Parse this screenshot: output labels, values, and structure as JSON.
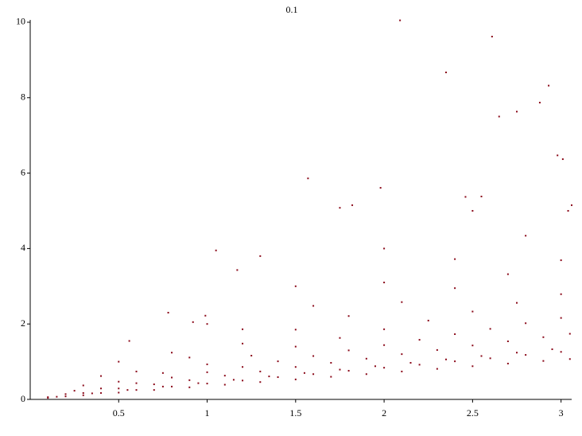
{
  "chart_data": {
    "type": "scatter",
    "title": "0.1",
    "color": "#8b0a1a",
    "xlim": [
      0,
      3.06
    ],
    "ylim": [
      0,
      10.05
    ],
    "xticks": [
      0.5,
      1,
      1.5,
      2,
      2.5,
      3
    ],
    "yticks": [
      0,
      2,
      4,
      6,
      8,
      10
    ],
    "x": [
      0.1,
      0.3,
      0.5,
      0.7,
      0.9,
      1.1,
      1.3,
      1.5,
      1.7,
      1.9,
      2.1,
      2.3,
      2.5,
      2.7,
      2.9,
      3.05,
      0.2,
      0.4,
      0.6,
      0.8,
      1.0,
      1.2,
      1.4,
      1.6,
      1.8,
      2.0,
      2.2,
      2.4,
      2.6,
      2.8,
      3.0,
      0.15,
      0.35,
      0.55,
      0.75,
      0.95,
      1.15,
      1.35,
      1.55,
      1.75,
      1.95,
      2.15,
      2.35,
      2.55,
      2.75,
      2.95,
      0.1,
      0.3,
      0.5,
      0.7,
      0.9,
      1.1,
      1.3,
      1.5,
      1.7,
      1.9,
      2.1,
      2.3,
      2.5,
      2.7,
      2.9,
      3.05,
      0.2,
      0.4,
      0.6,
      0.8,
      1.0,
      1.2,
      1.4,
      1.6,
      1.8,
      2.0,
      2.2,
      2.4,
      2.6,
      2.8,
      3.0,
      0.25,
      0.5,
      0.75,
      1.0,
      1.25,
      1.5,
      1.75,
      2.0,
      2.25,
      2.5,
      2.75,
      3.0,
      0.3,
      0.6,
      0.9,
      1.2,
      1.5,
      1.8,
      2.1,
      2.4,
      2.7,
      3.0,
      0.4,
      0.8,
      1.2,
      1.6,
      2.0,
      2.4,
      2.8,
      0.5,
      1.0,
      1.5,
      2.0,
      2.5,
      2.09,
      2.61,
      2.35,
      2.93,
      2.88,
      2.65,
      2.75,
      1.57,
      1.98,
      3.06,
      3.04,
      2.46,
      2.55,
      2.98,
      3.01,
      1.05,
      1.75,
      1.82,
      1.3,
      0.78,
      0.56,
      1.17,
      0.92,
      0.99
    ],
    "values": [
      0.04,
      0.11,
      0.18,
      0.25,
      0.32,
      0.39,
      0.46,
      0.53,
      0.6,
      0.67,
      0.74,
      0.81,
      0.88,
      0.95,
      1.02,
      1.07,
      0.08,
      0.17,
      0.25,
      0.34,
      0.42,
      0.5,
      0.59,
      0.67,
      0.76,
      0.84,
      0.92,
      1.01,
      1.09,
      1.18,
      1.26,
      0.07,
      0.16,
      0.25,
      0.34,
      0.43,
      0.52,
      0.61,
      0.7,
      0.79,
      0.88,
      0.97,
      1.06,
      1.15,
      1.24,
      1.33,
      0.06,
      0.17,
      0.29,
      0.4,
      0.51,
      0.63,
      0.74,
      0.86,
      0.97,
      1.08,
      1.2,
      1.31,
      1.43,
      1.54,
      1.65,
      1.74,
      0.14,
      0.29,
      0.43,
      0.58,
      0.72,
      0.86,
      1.01,
      1.15,
      1.3,
      1.44,
      1.58,
      1.73,
      1.87,
      2.02,
      2.16,
      0.23,
      0.47,
      0.7,
      0.93,
      1.16,
      1.4,
      1.63,
      1.86,
      2.09,
      2.33,
      2.56,
      2.79,
      0.37,
      0.74,
      1.11,
      1.48,
      1.85,
      2.21,
      2.58,
      2.95,
      3.32,
      3.69,
      0.62,
      1.24,
      1.86,
      2.48,
      3.1,
      3.72,
      4.34,
      1.0,
      2.0,
      3.0,
      4.0,
      5.0,
      10.05,
      9.62,
      8.67,
      8.32,
      7.87,
      7.5,
      7.63,
      5.86,
      5.61,
      5.15,
      5.0,
      5.37,
      5.38,
      6.47,
      6.37,
      3.95,
      5.08,
      5.15,
      3.8,
      2.3,
      1.55,
      3.43,
      2.05,
      2.22
    ]
  }
}
